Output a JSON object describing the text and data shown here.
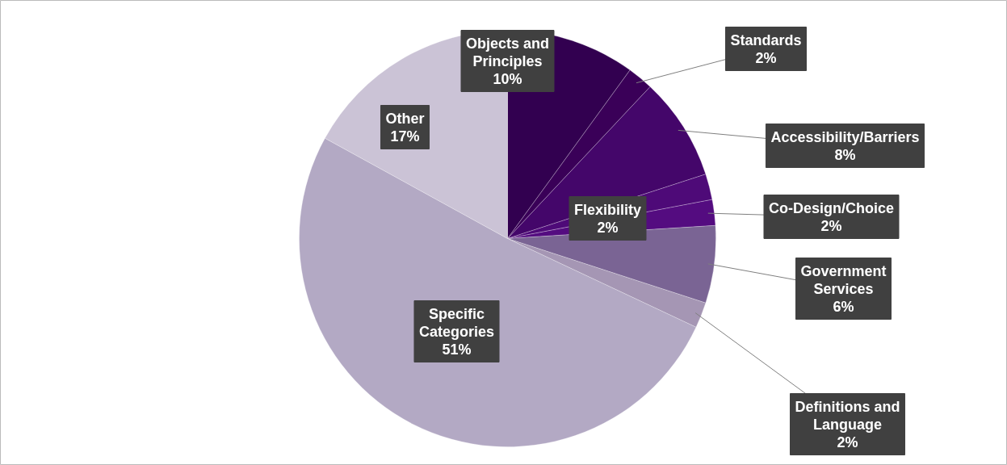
{
  "chart_data": {
    "type": "pie",
    "categories": [
      "Objects and Principles",
      "Standards",
      "Accessibility/Barriers",
      "Flexibility",
      "Co-Design/Choice",
      "Government Services",
      "Definitions and Language",
      "Specific Categories",
      "Other"
    ],
    "values": [
      10,
      2,
      8,
      2,
      2,
      6,
      2,
      51,
      17
    ],
    "value_labels": [
      "10%",
      "2%",
      "8%",
      "2%",
      "2%",
      "6%",
      "2%",
      "51%",
      "17%"
    ],
    "colors": [
      "#320050",
      "#3a0058",
      "#44066a",
      "#4e0a78",
      "#540c80",
      "#7a6494",
      "#a596b4",
      "#b3a9c4",
      "#cbc3d6"
    ]
  }
}
